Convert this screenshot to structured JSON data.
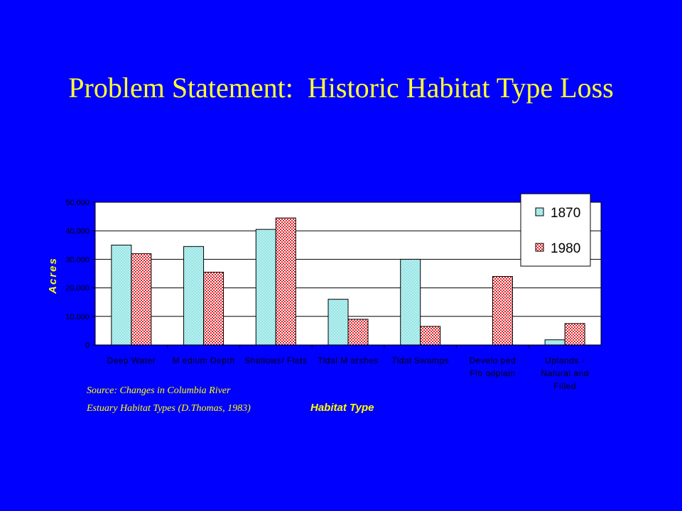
{
  "slide": {
    "title": "Problem Statement:  Historic Habitat Type Loss"
  },
  "chart_data": {
    "type": "bar",
    "categories": [
      [
        "Deep Water"
      ],
      [
        "M edium Depth"
      ],
      [
        "Shallows/ Flats"
      ],
      [
        "Tidal M arshes"
      ],
      [
        "Tidal Swamps"
      ],
      [
        "Develo ped",
        "Flo odplain"
      ],
      [
        "Uplands -",
        "Natural and",
        "Filled"
      ]
    ],
    "series": [
      {
        "name": "1870",
        "values": [
          35000,
          34500,
          40500,
          16000,
          30000,
          0,
          1800
        ],
        "color": "#B7F0F0",
        "pattern": "dots"
      },
      {
        "name": "1980",
        "values": [
          32000,
          25500,
          44500,
          9000,
          6500,
          24000,
          7500
        ],
        "color": "#E83A3A",
        "pattern": "checker"
      }
    ],
    "ylim": [
      0,
      50000
    ],
    "yticks": [
      0,
      10000,
      20000,
      30000,
      40000,
      50000
    ],
    "ytick_labels": [
      "0",
      "10,000",
      "20,000",
      "30,000",
      "40,000",
      "50,000"
    ],
    "xlabel": "Habitat Type",
    "ylabel": "Acres",
    "source_lines": [
      "Source: Changes in Columbia River",
      "Estuary Habitat Types (D.Thomas, 1983)"
    ],
    "grid": true,
    "legend": "top-right",
    "plot_bg": "#FFFFFF",
    "title_color": "#FFFF33"
  }
}
